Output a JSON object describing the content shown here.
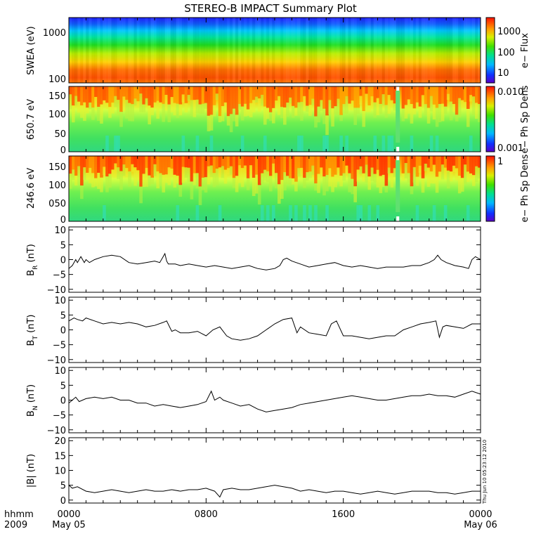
{
  "title": "STEREO-B IMPACT Summary Plot",
  "timestamp": "Thu Jun 10 05:23:12 2010",
  "x_axis": {
    "row1_label": "hhmm",
    "row2_label": "2009",
    "ticks": [
      {
        "hour": 0,
        "time": "0000",
        "date": "May 05"
      },
      {
        "hour": 8,
        "time": "0800",
        "date": ""
      },
      {
        "hour": 16,
        "time": "1600",
        "date": ""
      },
      {
        "hour": 24,
        "time": "0000",
        "date": "May 06"
      }
    ]
  },
  "panels": {
    "swea": {
      "ylabel": "SWEA (eV)",
      "ticks": [
        "1000",
        "100"
      ],
      "cbar_label": "e− Flux",
      "cbar_ticks": [
        "1000",
        "100",
        "10"
      ]
    },
    "pad650": {
      "ylabel": "650.7 eV",
      "ticks": [
        "150",
        "100",
        "50",
        "0"
      ],
      "cbar_label": "e− Ph Sp Dens",
      "cbar_ticks": [
        "0.010",
        "0.001"
      ]
    },
    "pad246": {
      "ylabel": "246.6 eV",
      "ticks": [
        "150",
        "100",
        "050",
        "0"
      ],
      "cbar_label": "e− Ph Sp Dens",
      "cbar_ticks": [
        "1"
      ]
    },
    "br": {
      "ylabel": "BR (nT)",
      "ticks": [
        "10",
        "5",
        "0",
        "−5",
        "−10"
      ]
    },
    "bt": {
      "ylabel": "BT (nT)",
      "ticks": [
        "10",
        "5",
        "0",
        "−5",
        "−10"
      ]
    },
    "bn": {
      "ylabel": "BN (nT)",
      "ticks": [
        "10",
        "5",
        "0",
        "−5",
        "−10"
      ]
    },
    "bmag": {
      "ylabel": "|B| (nT)",
      "ticks": [
        "20",
        "15",
        "10",
        "5",
        "0"
      ]
    }
  },
  "chart_data": [
    {
      "type": "heatmap",
      "name": "SWEA e− flux spectrogram",
      "x_unit": "hours since 2009-05-05 00:00",
      "xlim": [
        0,
        24
      ],
      "ylabel": "SWEA (eV)",
      "y_scale": "log",
      "ylim": [
        95,
        2000
      ],
      "colorbar": {
        "label": "e− Flux",
        "scale": "log",
        "range": [
          5,
          2500
        ],
        "ticks": [
          10,
          100,
          1000
        ]
      },
      "profile_energy_eV": [
        95,
        150,
        200,
        300,
        500,
        800,
        1200,
        2000
      ],
      "profile_flux": [
        1500,
        1200,
        700,
        250,
        90,
        25,
        8,
        5
      ]
    },
    {
      "type": "heatmap",
      "name": "650.7 eV pitch angle distribution",
      "x_unit": "hours since 2009-05-05 00:00",
      "xlim": [
        0,
        24
      ],
      "ylabel": "650.7 eV",
      "ylim": [
        0,
        180
      ],
      "colorbar": {
        "label": "e− Ph Sp Dens",
        "scale": "log",
        "range": [
          0.001,
          0.012
        ],
        "ticks": [
          0.001,
          0.01
        ]
      },
      "data_gap_hours": [
        19.05,
        19.3
      ],
      "high_density_above_pitch": 130
    },
    {
      "type": "heatmap",
      "name": "246.6 eV pitch angle distribution",
      "x_unit": "hours since 2009-05-05 00:00",
      "xlim": [
        0,
        24
      ],
      "ylabel": "246.6 eV",
      "ylim": [
        0,
        180
      ],
      "colorbar": {
        "label": "e− Ph Sp Dens",
        "scale": "linear",
        "range": [
          0,
          1
        ],
        "ticks": [
          1
        ]
      },
      "data_gap_hours": [
        19.05,
        19.3
      ],
      "high_density_above_pitch": 135
    },
    {
      "type": "line",
      "name": "BR",
      "ylabel": "BR (nT)",
      "ylim": [
        -11,
        11
      ],
      "x_hours": [
        0,
        0.2,
        0.4,
        0.5,
        0.7,
        0.9,
        1.0,
        1.2,
        1.5,
        2.0,
        2.5,
        3.0,
        3.5,
        4.0,
        4.5,
        5.0,
        5.3,
        5.5,
        5.6,
        5.7,
        5.8,
        6.2,
        6.5,
        7.0,
        7.5,
        8.0,
        8.5,
        9.0,
        9.5,
        10.0,
        10.5,
        11.0,
        11.5,
        12.0,
        12.3,
        12.5,
        12.7,
        13.0,
        13.5,
        14.0,
        14.5,
        15.0,
        15.5,
        16.0,
        16.5,
        17.0,
        17.5,
        18.0,
        18.5,
        19.0,
        19.5,
        20.0,
        20.5,
        21.0,
        21.3,
        21.5,
        21.7,
        22.0,
        22.5,
        23.0,
        23.3,
        23.5,
        23.7,
        24.0
      ],
      "values": [
        -3,
        -2,
        0,
        -1,
        1,
        -1,
        0,
        -1,
        0,
        1,
        1.5,
        1,
        -1,
        -1.5,
        -1,
        -0.5,
        -1,
        1,
        2,
        -0.5,
        -1.5,
        -1.5,
        -2,
        -1.5,
        -2,
        -2.5,
        -2,
        -2.5,
        -3,
        -2.5,
        -2,
        -3,
        -3.5,
        -3,
        -2,
        0,
        0.5,
        -0.5,
        -1.5,
        -2.5,
        -2,
        -1.5,
        -1,
        -2,
        -2.5,
        -2,
        -2.5,
        -3,
        -2.5,
        -2.5,
        -2.5,
        -2,
        -2,
        -1,
        0,
        1.5,
        0,
        -1,
        -2,
        -2.5,
        -3,
        0,
        1,
        0
      ]
    },
    {
      "type": "line",
      "name": "BT",
      "ylabel": "BT (nT)",
      "ylim": [
        -11,
        11
      ],
      "x_hours": [
        0,
        0.3,
        0.5,
        0.8,
        1.0,
        1.5,
        2.0,
        2.5,
        3.0,
        3.5,
        4.0,
        4.5,
        5.0,
        5.5,
        5.7,
        6.0,
        6.2,
        6.5,
        7.0,
        7.5,
        8.0,
        8.4,
        8.8,
        9.2,
        9.5,
        10.0,
        10.5,
        11.0,
        11.5,
        12.0,
        12.5,
        13.0,
        13.3,
        13.5,
        14.0,
        14.5,
        15.0,
        15.3,
        15.6,
        16.0,
        16.5,
        17.0,
        17.5,
        18.0,
        18.5,
        19.0,
        19.5,
        20.0,
        20.5,
        21.0,
        21.4,
        21.6,
        21.8,
        22.0,
        22.5,
        23.0,
        23.5,
        24.0
      ],
      "values": [
        3,
        4,
        3.5,
        3,
        4,
        3,
        2,
        2.5,
        2,
        2.5,
        2,
        1,
        1.5,
        2.5,
        3,
        -0.5,
        0,
        -1,
        -1,
        -0.5,
        -2,
        0,
        1,
        -2,
        -3,
        -3.5,
        -3,
        -2,
        0,
        2,
        3.5,
        4,
        -1,
        1,
        -1,
        -1.5,
        -2,
        2,
        3,
        -2,
        -2,
        -2.5,
        -3,
        -2.5,
        -2,
        -2,
        0,
        1,
        2,
        2.5,
        3,
        -2.5,
        1,
        1.5,
        1,
        0.5,
        2,
        2
      ]
    },
    {
      "type": "line",
      "name": "BN",
      "ylabel": "BN (nT)",
      "ylim": [
        -11,
        11
      ],
      "x_hours": [
        0,
        0.2,
        0.4,
        0.6,
        1.0,
        1.5,
        2.0,
        2.5,
        3.0,
        3.5,
        4.0,
        4.5,
        5.0,
        5.5,
        6.0,
        6.5,
        7.0,
        7.5,
        8.0,
        8.3,
        8.5,
        8.8,
        9.0,
        9.5,
        10.0,
        10.5,
        11.0,
        11.5,
        12.0,
        12.5,
        13.0,
        13.5,
        14.0,
        14.5,
        15.0,
        15.5,
        16.0,
        16.5,
        17.0,
        17.5,
        18.0,
        18.5,
        19.0,
        19.5,
        20.0,
        20.5,
        21.0,
        21.5,
        22.0,
        22.5,
        23.0,
        23.5,
        24.0
      ],
      "values": [
        -1,
        0,
        1,
        -0.5,
        0.5,
        1,
        0.5,
        1,
        0,
        0,
        -1,
        -1,
        -2,
        -1.5,
        -2,
        -2.5,
        -2,
        -1.5,
        -0.5,
        3,
        0,
        1,
        0,
        -1,
        -2,
        -1.5,
        -3,
        -4,
        -3.5,
        -3,
        -2.5,
        -1.5,
        -1,
        -0.5,
        0,
        0.5,
        1,
        1.5,
        1,
        0.5,
        0,
        0,
        0.5,
        1,
        1.5,
        1.5,
        2,
        1.5,
        1.5,
        1,
        2,
        3,
        2
      ]
    },
    {
      "type": "line",
      "name": "|B|",
      "ylabel": "|B| (nT)",
      "ylim": [
        -1,
        21
      ],
      "x_hours": [
        0,
        0.2,
        0.5,
        1.0,
        1.5,
        2.0,
        2.5,
        3.0,
        3.5,
        4.0,
        4.5,
        5.0,
        5.5,
        6.0,
        6.5,
        7.0,
        7.5,
        8.0,
        8.5,
        8.8,
        9.0,
        9.5,
        10.0,
        10.5,
        11.0,
        11.5,
        12.0,
        12.5,
        13.0,
        13.5,
        14.0,
        14.5,
        15.0,
        15.5,
        16.0,
        16.5,
        17.0,
        17.5,
        18.0,
        18.5,
        19.0,
        19.5,
        20.0,
        20.5,
        21.0,
        21.5,
        22.0,
        22.5,
        23.0,
        23.5,
        24.0
      ],
      "values": [
        5,
        4,
        4.5,
        3,
        2.5,
        3,
        3.5,
        3,
        2.5,
        3,
        3.5,
        3,
        3,
        3.5,
        3,
        3.5,
        3.5,
        4,
        3,
        1,
        3.5,
        4,
        3.5,
        3.5,
        4,
        4.5,
        5,
        4.5,
        4,
        3,
        3.5,
        3,
        2.5,
        3,
        3,
        2.5,
        2,
        2.5,
        3,
        2.5,
        2,
        2.5,
        3,
        3,
        3,
        2.5,
        2.5,
        2,
        2.5,
        3,
        3
      ]
    }
  ]
}
